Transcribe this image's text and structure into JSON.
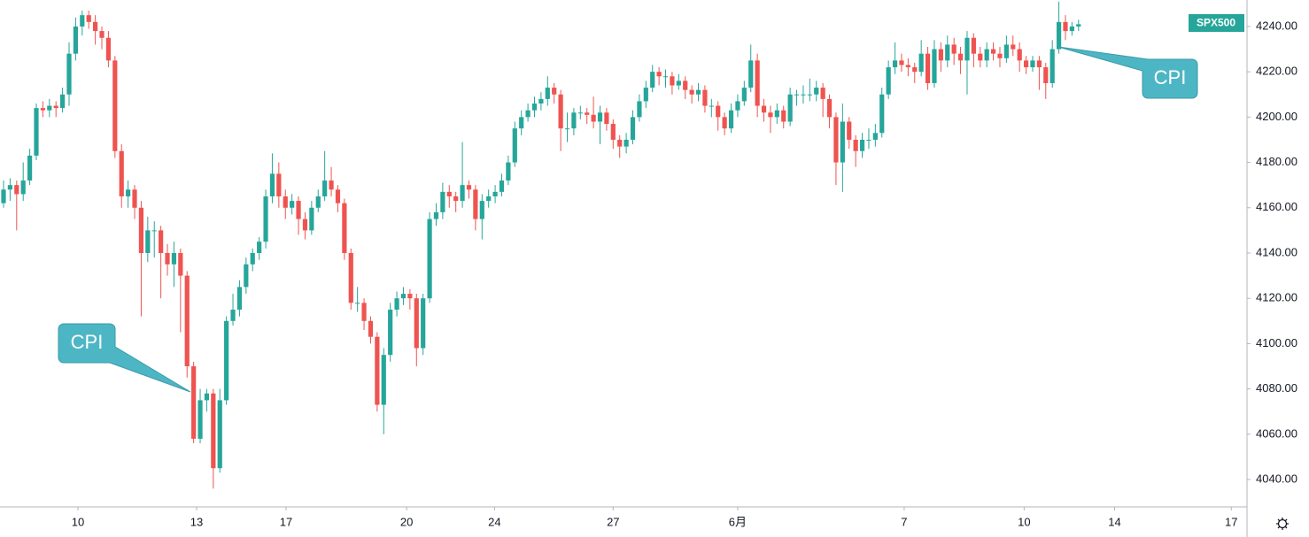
{
  "chart_data": {
    "type": "candlestick",
    "symbol": "SPX500",
    "up_color": "#26a69a",
    "down_color": "#ef5350",
    "ylim": [
      4027.9,
      4251.7
    ],
    "yticks": [
      {
        "value": 4040,
        "label": "4040.00"
      },
      {
        "value": 4060,
        "label": "4060.00"
      },
      {
        "value": 4080,
        "label": "4080.00"
      },
      {
        "value": 4100,
        "label": "4100.00"
      },
      {
        "value": 4120,
        "label": "4120.00"
      },
      {
        "value": 4140,
        "label": "4140.00"
      },
      {
        "value": 4160,
        "label": "4160.00"
      },
      {
        "value": 4180,
        "label": "4180.00"
      },
      {
        "value": 4200,
        "label": "4200.00"
      },
      {
        "value": 4220,
        "label": "4220.00"
      },
      {
        "value": 4240,
        "label": "4240.00"
      }
    ],
    "xlim": [
      -0.54,
      189.7
    ],
    "xticks": [
      {
        "value": 11.35,
        "label": "10"
      },
      {
        "value": 29.46,
        "label": "13"
      },
      {
        "value": 43.1,
        "label": "17"
      },
      {
        "value": 61.5,
        "label": "20"
      },
      {
        "value": 74.9,
        "label": "24"
      },
      {
        "value": 93.0,
        "label": "27"
      },
      {
        "value": 112.0,
        "label": "6月"
      },
      {
        "value": 137.4,
        "label": "7"
      },
      {
        "value": 155.7,
        "label": "10"
      },
      {
        "value": 169.5,
        "label": "14"
      },
      {
        "value": 187.3,
        "label": "17"
      }
    ],
    "annotations": [
      "CPI",
      "CPI"
    ],
    "grid": false,
    "candles": [
      [
        4162,
        4172,
        4160,
        4168
      ],
      [
        4168,
        4173,
        4163,
        4170
      ],
      [
        4170,
        4172,
        4150,
        4166
      ],
      [
        4166,
        4180,
        4163,
        4172
      ],
      [
        4172,
        4186,
        4170,
        4183
      ],
      [
        4183,
        4206,
        4181,
        4204
      ],
      [
        4204,
        4207,
        4200,
        4203
      ],
      [
        4203,
        4208,
        4200,
        4205
      ],
      [
        4205,
        4207,
        4200,
        4204
      ],
      [
        4204,
        4213,
        4202,
        4210
      ],
      [
        4210,
        4233,
        4205,
        4228
      ],
      [
        4228,
        4244,
        4225,
        4240
      ],
      [
        4240,
        4247,
        4236,
        4245
      ],
      [
        4245,
        4247,
        4239,
        4242
      ],
      [
        4242,
        4245,
        4232,
        4238
      ],
      [
        4238,
        4240,
        4230,
        4235
      ],
      [
        4235,
        4238,
        4222,
        4225
      ],
      [
        4225,
        4227,
        4182,
        4185
      ],
      [
        4185,
        4188,
        4160,
        4165
      ],
      [
        4165,
        4172,
        4160,
        4168
      ],
      [
        4168,
        4170,
        4155,
        4160
      ],
      [
        4160,
        4163,
        4112,
        4140
      ],
      [
        4140,
        4156,
        4136,
        4150
      ],
      [
        4150,
        4154,
        4138,
        4150
      ],
      [
        4150,
        4152,
        4120,
        4140
      ],
      [
        4140,
        4144,
        4130,
        4135
      ],
      [
        4135,
        4145,
        4125,
        4140
      ],
      [
        4140,
        4142,
        4105,
        4130
      ],
      [
        4130,
        4132,
        4085,
        4090
      ],
      [
        4090,
        4092,
        4056,
        4058
      ],
      [
        4058,
        4080,
        4056,
        4075
      ],
      [
        4075,
        4080,
        4070,
        4078
      ],
      [
        4078,
        4080,
        4036,
        4045
      ],
      [
        4045,
        4080,
        4043,
        4075
      ],
      [
        4075,
        4112,
        4073,
        4110
      ],
      [
        4110,
        4122,
        4108,
        4115
      ],
      [
        4115,
        4128,
        4112,
        4125
      ],
      [
        4125,
        4138,
        4122,
        4135
      ],
      [
        4135,
        4142,
        4132,
        4140
      ],
      [
        4140,
        4147,
        4137,
        4145
      ],
      [
        4145,
        4168,
        4142,
        4165
      ],
      [
        4165,
        4184,
        4162,
        4175
      ],
      [
        4175,
        4180,
        4160,
        4165
      ],
      [
        4165,
        4168,
        4155,
        4160
      ],
      [
        4160,
        4166,
        4157,
        4163
      ],
      [
        4163,
        4165,
        4148,
        4155
      ],
      [
        4155,
        4158,
        4146,
        4150
      ],
      [
        4150,
        4163,
        4148,
        4160
      ],
      [
        4160,
        4168,
        4158,
        4165
      ],
      [
        4165,
        4185,
        4163,
        4172
      ],
      [
        4172,
        4178,
        4165,
        4168
      ],
      [
        4168,
        4170,
        4158,
        4162
      ],
      [
        4162,
        4164,
        4137,
        4140
      ],
      [
        4140,
        4142,
        4115,
        4118
      ],
      [
        4118,
        4125,
        4114,
        4118
      ],
      [
        4118,
        4120,
        4106,
        4110
      ],
      [
        4110,
        4112,
        4100,
        4103
      ],
      [
        4103,
        4105,
        4070,
        4073
      ],
      [
        4073,
        4098,
        4060,
        4095
      ],
      [
        4095,
        4118,
        4092,
        4115
      ],
      [
        4115,
        4123,
        4112,
        4120
      ],
      [
        4120,
        4125,
        4117,
        4122
      ],
      [
        4122,
        4124,
        4115,
        4120
      ],
      [
        4120,
        4122,
        4090,
        4098
      ],
      [
        4098,
        4122,
        4095,
        4120
      ],
      [
        4120,
        4158,
        4118,
        4155
      ],
      [
        4155,
        4162,
        4152,
        4158
      ],
      [
        4158,
        4171,
        4155,
        4167
      ],
      [
        4167,
        4170,
        4160,
        4165
      ],
      [
        4165,
        4167,
        4158,
        4163
      ],
      [
        4163,
        4189,
        4160,
        4170
      ],
      [
        4170,
        4172,
        4164,
        4168
      ],
      [
        4168,
        4170,
        4150,
        4155
      ],
      [
        4155,
        4166,
        4146,
        4163
      ],
      [
        4163,
        4168,
        4160,
        4165
      ],
      [
        4165,
        4170,
        4162,
        4167
      ],
      [
        4167,
        4175,
        4165,
        4172
      ],
      [
        4172,
        4183,
        4170,
        4180
      ],
      [
        4180,
        4198,
        4178,
        4195
      ],
      [
        4195,
        4203,
        4192,
        4200
      ],
      [
        4200,
        4206,
        4198,
        4203
      ],
      [
        4203,
        4209,
        4200,
        4206
      ],
      [
        4206,
        4211,
        4203,
        4208
      ],
      [
        4208,
        4218,
        4205,
        4213
      ],
      [
        4213,
        4215,
        4206,
        4210
      ],
      [
        4210,
        4212,
        4185,
        4195
      ],
      [
        4195,
        4202,
        4189,
        4195
      ],
      [
        4195,
        4204,
        4192,
        4202
      ],
      [
        4202,
        4205,
        4199,
        4202
      ],
      [
        4202,
        4204,
        4197,
        4201
      ],
      [
        4201,
        4209,
        4195,
        4198
      ],
      [
        4198,
        4205,
        4188,
        4202
      ],
      [
        4202,
        4204,
        4194,
        4197
      ],
      [
        4197,
        4199,
        4186,
        4190
      ],
      [
        4190,
        4192,
        4182,
        4187
      ],
      [
        4187,
        4193,
        4184,
        4190
      ],
      [
        4190,
        4203,
        4188,
        4200
      ],
      [
        4200,
        4210,
        4198,
        4207
      ],
      [
        4207,
        4216,
        4204,
        4213
      ],
      [
        4213,
        4223,
        4211,
        4220
      ],
      [
        4220,
        4222,
        4214,
        4218
      ],
      [
        4218,
        4221,
        4213,
        4218
      ],
      [
        4218,
        4220,
        4210,
        4214
      ],
      [
        4214,
        4219,
        4212,
        4216
      ],
      [
        4216,
        4218,
        4208,
        4212
      ],
      [
        4212,
        4214,
        4206,
        4210
      ],
      [
        4210,
        4215,
        4207,
        4212
      ],
      [
        4212,
        4214,
        4202,
        4205
      ],
      [
        4205,
        4208,
        4200,
        4205
      ],
      [
        4205,
        4207,
        4194,
        4200
      ],
      [
        4200,
        4202,
        4192,
        4195
      ],
      [
        4195,
        4206,
        4193,
        4203
      ],
      [
        4203,
        4210,
        4200,
        4207
      ],
      [
        4207,
        4216,
        4205,
        4213
      ],
      [
        4213,
        4232,
        4211,
        4225
      ],
      [
        4225,
        4228,
        4200,
        4205
      ],
      [
        4205,
        4208,
        4198,
        4202
      ],
      [
        4202,
        4205,
        4193,
        4200
      ],
      [
        4200,
        4206,
        4197,
        4203
      ],
      [
        4203,
        4205,
        4195,
        4198
      ],
      [
        4198,
        4213,
        4196,
        4210
      ],
      [
        4210,
        4212,
        4205,
        4210
      ],
      [
        4210,
        4214,
        4206,
        4210
      ],
      [
        4210,
        4217,
        4207,
        4210
      ],
      [
        4210,
        4216,
        4207,
        4213
      ],
      [
        4213,
        4215,
        4200,
        4208
      ],
      [
        4208,
        4210,
        4195,
        4200
      ],
      [
        4200,
        4202,
        4170,
        4180
      ],
      [
        4180,
        4206,
        4167,
        4198
      ],
      [
        4198,
        4200,
        4186,
        4190
      ],
      [
        4190,
        4192,
        4178,
        4185
      ],
      [
        4185,
        4193,
        4182,
        4190
      ],
      [
        4190,
        4195,
        4186,
        4190
      ],
      [
        4190,
        4197,
        4187,
        4193
      ],
      [
        4193,
        4213,
        4191,
        4210
      ],
      [
        4210,
        4225,
        4208,
        4222
      ],
      [
        4222,
        4233,
        4219,
        4225
      ],
      [
        4225,
        4228,
        4220,
        4223
      ],
      [
        4223,
        4226,
        4218,
        4222
      ],
      [
        4222,
        4224,
        4215,
        4220
      ],
      [
        4220,
        4234,
        4218,
        4228
      ],
      [
        4228,
        4231,
        4212,
        4215
      ],
      [
        4215,
        4234,
        4213,
        4230
      ],
      [
        4230,
        4233,
        4220,
        4225
      ],
      [
        4225,
        4236,
        4222,
        4232
      ],
      [
        4232,
        4235,
        4223,
        4228
      ],
      [
        4228,
        4231,
        4219,
        4225
      ],
      [
        4225,
        4238,
        4210,
        4235
      ],
      [
        4235,
        4237,
        4222,
        4228
      ],
      [
        4228,
        4231,
        4222,
        4225
      ],
      [
        4225,
        4233,
        4222,
        4230
      ],
      [
        4230,
        4233,
        4225,
        4228
      ],
      [
        4228,
        4231,
        4222,
        4226
      ],
      [
        4226,
        4236,
        4224,
        4232
      ],
      [
        4232,
        4236,
        4227,
        4230
      ],
      [
        4230,
        4233,
        4220,
        4225
      ],
      [
        4225,
        4227,
        4219,
        4222
      ],
      [
        4222,
        4227,
        4220,
        4225
      ],
      [
        4225,
        4227,
        4212,
        4222
      ],
      [
        4222,
        4224,
        4208,
        4215
      ],
      [
        4215,
        4234,
        4213,
        4230
      ],
      [
        4230,
        4251,
        4228,
        4242
      ],
      [
        4242,
        4245,
        4234,
        4238
      ],
      [
        4238,
        4242,
        4236,
        4240
      ],
      [
        4240,
        4243,
        4238,
        4241
      ]
    ]
  }
}
